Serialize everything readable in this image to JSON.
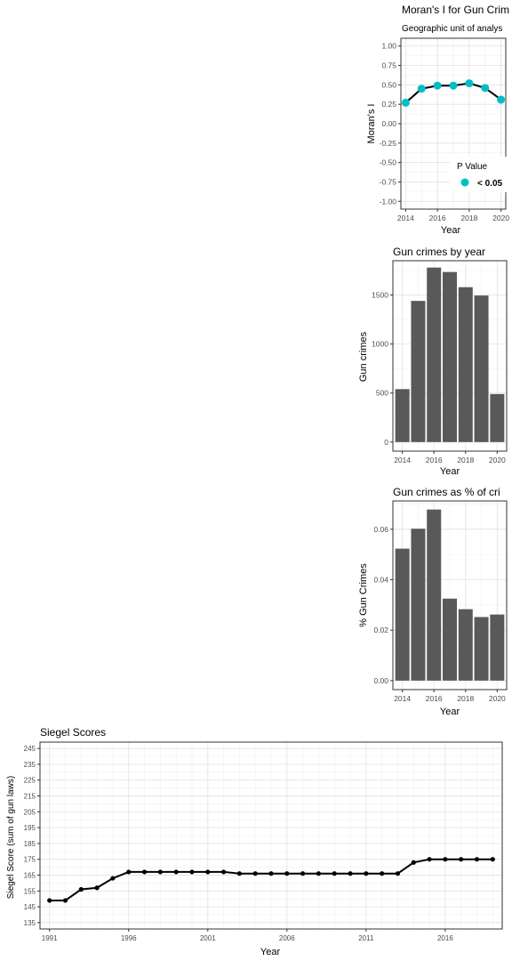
{
  "chart_data": [
    {
      "id": "morans",
      "type": "line",
      "title": "Moran's I for Gun Crim",
      "subtitle": "Geographic unit of analys",
      "xlabel": "Year",
      "ylabel": "Moran's I",
      "x": [
        2014,
        2015,
        2016,
        2017,
        2018,
        2019,
        2020
      ],
      "y": [
        0.27,
        0.45,
        0.49,
        0.49,
        0.52,
        0.46,
        0.31
      ],
      "xlim": [
        2014,
        2020
      ],
      "ylim": [
        -1.0,
        1.0
      ],
      "xticks": [
        "2014",
        "2016",
        "2018",
        "2020"
      ],
      "yticks": [
        "-1.00",
        "-0.75",
        "-0.50",
        "-0.25",
        "0.00",
        "0.25",
        "0.50",
        "0.75",
        "1.00"
      ],
      "grid": true,
      "point_color": "#00BFC4",
      "legend": {
        "title": "P Value",
        "position": "bottom-right",
        "entries": [
          {
            "label": "< 0.05",
            "color": "#00BFC4"
          }
        ]
      }
    },
    {
      "id": "gun-crimes",
      "type": "bar",
      "title": "Gun crimes by year",
      "xlabel": "Year",
      "ylabel": "Gun crimes",
      "categories": [
        2014,
        2015,
        2016,
        2017,
        2018,
        2019,
        2020
      ],
      "values": [
        540,
        1440,
        1780,
        1735,
        1580,
        1495,
        490
      ],
      "ylim": [
        0,
        1850
      ],
      "xticks": [
        "2014",
        "2016",
        "2018",
        "2020"
      ],
      "yticks": [
        "0",
        "500",
        "1000",
        "1500"
      ],
      "grid": true,
      "bar_color": "#595959"
    },
    {
      "id": "gun-pct",
      "type": "bar",
      "title": "Gun crimes as % of cri",
      "xlabel": "Year",
      "ylabel": "% Gun Crimes",
      "categories": [
        2014,
        2015,
        2016,
        2017,
        2018,
        2019,
        2020
      ],
      "values": [
        0.0523,
        0.0602,
        0.0678,
        0.0325,
        0.0283,
        0.0252,
        0.0262
      ],
      "ylim": [
        0,
        0.0712
      ],
      "xticks": [
        "2014",
        "2016",
        "2018",
        "2020"
      ],
      "yticks": [
        "0.00",
        "0.02",
        "0.04",
        "0.06"
      ],
      "grid": true,
      "bar_color": "#595959"
    },
    {
      "id": "siegel",
      "type": "line",
      "title": "Siegel Scores",
      "xlabel": "Year",
      "ylabel": "Siegel Score (sum of gun laws)",
      "x": [
        1991,
        1992,
        1993,
        1994,
        1995,
        1996,
        1997,
        1998,
        1999,
        2000,
        2001,
        2002,
        2003,
        2004,
        2005,
        2006,
        2007,
        2008,
        2009,
        2010,
        2011,
        2012,
        2013,
        2014,
        2015,
        2016,
        2017,
        2018,
        2019
      ],
      "y": [
        149,
        149,
        156,
        157,
        163,
        167,
        167,
        167,
        167,
        167,
        167,
        167,
        166,
        166,
        166,
        166,
        166,
        166,
        166,
        166,
        166,
        166,
        166,
        173,
        175,
        175,
        175,
        175,
        175
      ],
      "xlim": [
        1990.4,
        2019.6
      ],
      "ylim": [
        131,
        249
      ],
      "xticks": [
        "1991",
        "1996",
        "2001",
        "2006",
        "2011",
        "2016"
      ],
      "yticks": [
        "135",
        "145",
        "155",
        "165",
        "175",
        "185",
        "195",
        "205",
        "215",
        "225",
        "235",
        "245"
      ],
      "grid": true,
      "line_color": "#000000"
    }
  ]
}
